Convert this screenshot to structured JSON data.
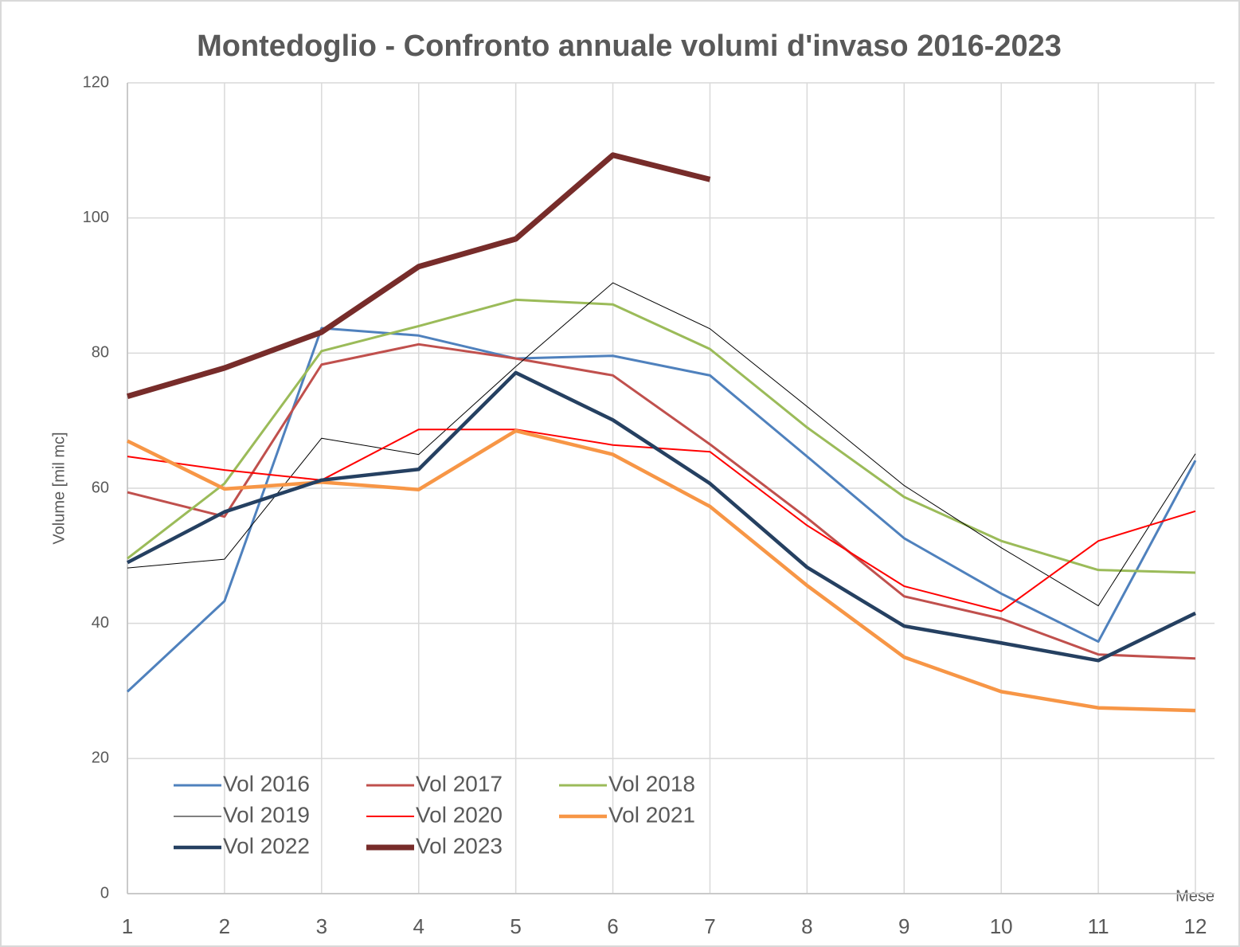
{
  "chart_data": {
    "type": "line",
    "title": "Montedoglio - Confronto annuale volumi d'invaso 2016-2023",
    "y_label": "Volume [mil mc]",
    "x_label": "Mese",
    "x": [
      1,
      2,
      3,
      4,
      5,
      6,
      7,
      8,
      9,
      10,
      11,
      12
    ],
    "xlim": [
      1,
      12
    ],
    "xticks": [
      1,
      2,
      3,
      4,
      5,
      6,
      7,
      8,
      9,
      10,
      11,
      12
    ],
    "ylim": [
      0,
      120
    ],
    "yticks": [
      0,
      20,
      40,
      60,
      80,
      100,
      120
    ],
    "grid": true,
    "legend": "lower left",
    "series": [
      {
        "name": "Vol 2016",
        "color": "#4f81bd",
        "width": 3,
        "values": [
          29.9,
          43.3,
          83.7,
          82.6,
          79.2,
          79.6,
          76.7,
          64.7,
          52.6,
          44.4,
          37.3,
          64.1
        ]
      },
      {
        "name": "Vol 2017",
        "color": "#c0504d",
        "width": 3,
        "values": [
          59.4,
          55.8,
          78.3,
          81.3,
          79.2,
          76.7,
          66.5,
          55.6,
          44.0,
          40.7,
          35.4,
          34.8
        ]
      },
      {
        "name": "Vol 2018",
        "color": "#9bbb59",
        "width": 3,
        "values": [
          49.6,
          60.7,
          80.3,
          84.0,
          87.9,
          87.2,
          80.6,
          69.0,
          58.7,
          52.2,
          47.9,
          47.5
        ]
      },
      {
        "name": "Vol 2019",
        "color": "#000000",
        "width": 1,
        "values": [
          48.2,
          49.5,
          67.4,
          65.0,
          78.0,
          90.4,
          83.6,
          72.1,
          60.4,
          51.2,
          42.6,
          65.1
        ]
      },
      {
        "name": "Vol 2020",
        "color": "#ff0000",
        "width": 2,
        "values": [
          64.7,
          62.7,
          61.2,
          68.7,
          68.7,
          66.4,
          65.4,
          54.5,
          45.5,
          41.8,
          52.2,
          56.6
        ]
      },
      {
        "name": "Vol 2021",
        "color": "#f79646",
        "width": 4.5,
        "values": [
          67.0,
          59.9,
          60.9,
          59.8,
          68.5,
          65.0,
          57.3,
          45.6,
          35.0,
          29.9,
          27.5,
          27.1
        ]
      },
      {
        "name": "Vol 2022",
        "color": "#254061",
        "width": 4.5,
        "values": [
          49.0,
          56.5,
          61.2,
          62.8,
          77.1,
          70.1,
          60.7,
          48.3,
          39.6,
          37.1,
          34.5,
          41.5
        ]
      },
      {
        "name": "Vol 2023",
        "color": "#772c2a",
        "width": 7,
        "values": [
          73.6,
          77.8,
          83.1,
          92.8,
          96.9,
          109.3,
          105.7,
          null,
          null,
          null,
          null,
          null
        ]
      }
    ]
  }
}
